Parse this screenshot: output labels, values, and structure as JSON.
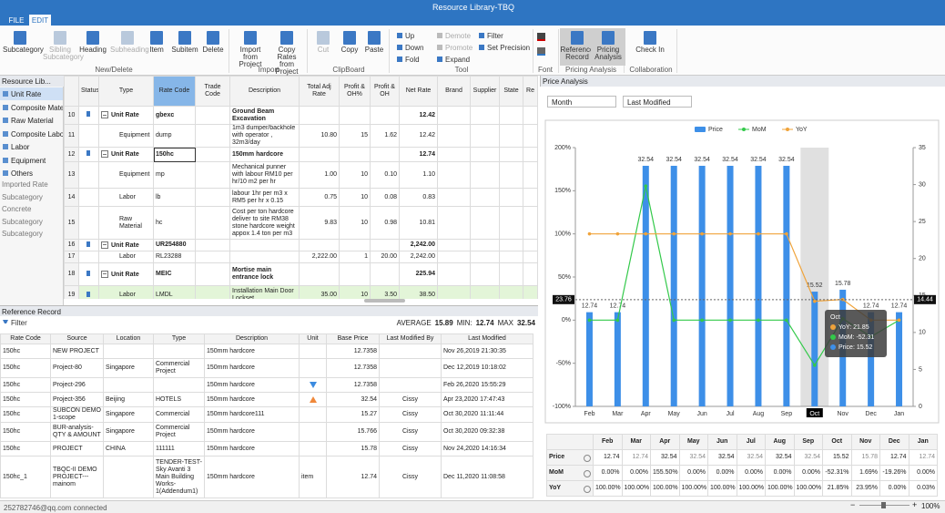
{
  "window": {
    "title": "Resource Library-TBQ",
    "tabs": [
      "FILE",
      "EDIT"
    ]
  },
  "ribbon": {
    "groups": [
      {
        "name": "New/Delete",
        "buttons": [
          {
            "label": "Subcategory"
          },
          {
            "label": "Sibling Subcategory",
            "disabled": true
          },
          {
            "label": "Heading"
          },
          {
            "label": "Subheading",
            "disabled": true
          },
          {
            "label": "Item"
          },
          {
            "label": "Subitem"
          },
          {
            "label": "Delete"
          }
        ]
      },
      {
        "name": "Import",
        "buttons": [
          {
            "label": "Import from Project"
          },
          {
            "label": "Copy Rates from Project"
          }
        ]
      },
      {
        "name": "ClipBoard",
        "buttons": [
          {
            "label": "Cut",
            "disabled": true
          },
          {
            "label": "Copy"
          },
          {
            "label": "Paste"
          }
        ]
      },
      {
        "name": "Tool",
        "buttons": [
          {
            "label": "Up"
          },
          {
            "label": "Down"
          },
          {
            "label": "Fold"
          },
          {
            "label": "Demote",
            "disabled": true
          },
          {
            "label": "Promote",
            "disabled": true
          },
          {
            "label": "Expand"
          },
          {
            "label": "Filter"
          },
          {
            "label": "Set Precision"
          }
        ]
      },
      {
        "name": "Font",
        "buttons": []
      },
      {
        "name": "Pricing Analysis",
        "buttons": [
          {
            "label": "Reference Record",
            "active": true
          },
          {
            "label": "Pricing Analysis",
            "active": true
          }
        ]
      },
      {
        "name": "Collaboration",
        "buttons": [
          {
            "label": "Check In"
          }
        ]
      }
    ]
  },
  "sidebar": {
    "header": "Resource Lib...",
    "categories": [
      "Unit Rate",
      "Composite Material",
      "Raw Material",
      "Composite Labor",
      "Labor",
      "Equipment",
      "Others"
    ],
    "selected": 0,
    "subcategories": [
      "Imported Rate",
      "Subcategory",
      "Concrete",
      "Subcategory",
      "Subcategory"
    ]
  },
  "grid": {
    "columns": [
      "Status",
      "Type",
      "Rate Code",
      "Trade Code",
      "Description",
      "Total Adj Rate",
      "Profit & OH%",
      "Profit & OH",
      "Net Rate",
      "Brand",
      "Supplier",
      "State",
      "Re"
    ],
    "rows": [
      {
        "n": "10",
        "unit": true,
        "cells": [
          null,
          "Unit Rate",
          "gbexc",
          null,
          "Ground Beam Excavation",
          null,
          null,
          null,
          "12.42",
          null,
          null,
          null,
          null
        ]
      },
      {
        "n": "11",
        "cells": [
          null,
          "Equipment",
          "dump",
          null,
          "1m3 dumper/backhole with operator , 32m3/day",
          "10.80",
          "15",
          "1.62",
          "12.42",
          null,
          null,
          null,
          null
        ]
      },
      {
        "n": "12",
        "unit": true,
        "selected": true,
        "cells": [
          null,
          "Unit Rate",
          "150hc",
          null,
          "150mm hardcore",
          null,
          null,
          null,
          "12.74",
          null,
          null,
          null,
          null
        ]
      },
      {
        "n": "13",
        "cells": [
          null,
          "Equipment",
          "mp",
          null,
          "Mechanical punner with labour RM10 per hr/10 m2 per hr",
          "1.00",
          "10",
          "0.10",
          "1.10",
          null,
          null,
          null,
          null
        ]
      },
      {
        "n": "14",
        "cells": [
          null,
          "Labor",
          "lb",
          null,
          "labour 1hr per m3 x RM5 per hr x 0.15",
          "0.75",
          "10",
          "0.08",
          "0.83",
          null,
          null,
          null,
          null
        ]
      },
      {
        "n": "15",
        "cells": [
          null,
          "Raw Material",
          "hc",
          null,
          "Cost per ton hardcore deliver to site RM38 stone hardcore weight appox 1.4 ton per m3",
          "9.83",
          "10",
          "0.98",
          "10.81",
          null,
          null,
          null,
          null
        ]
      },
      {
        "n": "16",
        "unit": true,
        "cells": [
          null,
          "Unit Rate",
          "UR254880",
          null,
          null,
          null,
          null,
          null,
          "2,242.00",
          null,
          null,
          null,
          null
        ]
      },
      {
        "n": "17",
        "cells": [
          null,
          "Labor",
          "RL23288",
          null,
          null,
          "2,222.00",
          "1",
          "20.00",
          "2,242.00",
          null,
          null,
          null,
          null
        ]
      },
      {
        "n": "18",
        "unit": true,
        "cells": [
          null,
          "Unit Rate",
          "MEIC",
          null,
          "Mortise main entrance lock",
          null,
          null,
          null,
          "225.94",
          null,
          null,
          null,
          null
        ]
      },
      {
        "n": "19",
        "highlighted": true,
        "cells": [
          null,
          "Labor",
          "LMDL",
          null,
          "Installation Main Door Lockset",
          "35.00",
          "10",
          "3.50",
          "38.50",
          null,
          null,
          null,
          null
        ]
      }
    ]
  },
  "reference": {
    "title": "Reference Record",
    "filter": "Filter",
    "summary": {
      "average_label": "AVERAGE",
      "average": "15.89",
      "min_label": "MIN:",
      "min": "12.74",
      "max_label": "MAX",
      "max": "32.54"
    },
    "columns": [
      "Rate Code",
      "Source",
      "Location",
      "Type",
      "Description",
      "Unit",
      "Base Price",
      "Last Modified By",
      "Last Modified"
    ],
    "rows": [
      [
        "150hc",
        "NEW PROJECT",
        null,
        null,
        "150mm hardcore",
        null,
        "12.7358",
        null,
        "Nov 26,2019 21:30:35"
      ],
      [
        "150hc",
        "Project-80",
        "Singapore",
        "Commercial Project",
        "150mm hardcore",
        null,
        "12.7358",
        null,
        "Dec 12,2019 10:18:02"
      ],
      [
        "150hc",
        "Project-296",
        null,
        null,
        "150mm hardcore",
        null,
        "12.7358",
        null,
        "Feb 26,2020 15:55:29"
      ],
      [
        "150hc",
        "Project-356",
        "Beijing",
        "HOTELS",
        "150mm hardcore",
        null,
        "32.54",
        "Cissy",
        "Apr 23,2020 17:47:43"
      ],
      [
        "150hc",
        "SUBCON DEMO 1-scope",
        "Singapore",
        "Commercial",
        "150mm hardcore111",
        null,
        "15.27",
        "Cissy",
        "Oct 30,2020 11:11:44"
      ],
      [
        "150hc",
        "BUR-analysis-QTY & AMOUNT",
        "Singapore",
        "Commercial Project",
        "150mm hardcore",
        null,
        "15.766",
        "Cissy",
        "Oct 30,2020 09:32:38"
      ],
      [
        "150hc",
        "PROJECT",
        "CHINA",
        "111111",
        "150mm hardcore",
        null,
        "15.78",
        "Cissy",
        "Nov 24,2020 14:16:34"
      ],
      [
        "150hc_1",
        "TBQC-II DEMO PROJECT---mainom",
        null,
        "TENDER-TEST-Sky Avanti 3 Main Building Works-1(Addendum1)",
        "150mm hardcore",
        "item",
        "12.74",
        "Cissy",
        "Dec 11,2020 11:08:58"
      ]
    ],
    "trend": [
      null,
      null,
      "down",
      "up",
      null,
      null,
      null,
      null
    ]
  },
  "price_panel": {
    "title": "Price Analysis",
    "period": "Month",
    "sort": "Last Modified",
    "row_labels": [
      "Price",
      "MoM",
      "YoY"
    ]
  },
  "zoom": {
    "minus": "−",
    "plus": "+",
    "level": "100%"
  },
  "status": "252782746@qq.com connected",
  "chart_data": {
    "type": "combo",
    "categories": [
      "Feb",
      "Mar",
      "Apr",
      "May",
      "Jun",
      "Jul",
      "Aug",
      "Sep",
      "Oct",
      "Nov",
      "Dec",
      "Jan"
    ],
    "series": [
      {
        "name": "Price",
        "kind": "bar",
        "axis": "y2",
        "color": "#3d8fe8",
        "values": [
          12.74,
          12.74,
          32.54,
          32.54,
          32.54,
          32.54,
          32.54,
          32.54,
          15.52,
          15.78,
          12.74,
          12.74
        ]
      },
      {
        "name": "MoM",
        "kind": "line",
        "color": "#33c94a",
        "values": [
          0,
          0,
          155.5,
          0,
          0,
          0,
          0,
          0,
          -52.31,
          1.69,
          -19.26,
          0
        ],
        "value_labels": [
          "0.00%",
          "0.00%",
          "155.50%",
          "0.00%",
          "0.00%",
          "0.00%",
          "0.00%",
          "0.00%",
          "-52.31%",
          "1.69%",
          "-19.26%",
          "0.00%"
        ]
      },
      {
        "name": "YoY",
        "kind": "line",
        "color": "#f0a33a",
        "values": [
          100,
          100,
          100,
          100,
          100,
          100,
          100,
          100,
          21.85,
          23.95,
          0,
          0.03
        ],
        "value_labels": [
          "100.00%",
          "100.00%",
          "100.00%",
          "100.00%",
          "100.00%",
          "100.00%",
          "100.00%",
          "100.00%",
          "21.85%",
          "23.95%",
          "0.00%",
          "0.03%"
        ]
      }
    ],
    "ylim": [
      -100,
      200
    ],
    "yticks": [
      {
        "value": -100,
        "label": "-100%"
      },
      {
        "value": -50,
        "label": "-50%"
      },
      {
        "value": 0,
        "label": "0%"
      },
      {
        "value": 50,
        "label": "50%"
      },
      {
        "value": 100,
        "label": "100%"
      },
      {
        "value": 150,
        "label": "150%"
      },
      {
        "value": 200,
        "label": "200%"
      }
    ],
    "y2lim": [
      0,
      35
    ],
    "y2ticks": [
      0,
      5,
      10,
      15,
      20,
      25,
      30,
      35
    ],
    "legend": "top",
    "grid": false,
    "highlight": "Oct",
    "crosshair": {
      "y": 23.76,
      "y2": 14.44
    },
    "tooltip": {
      "title": "Oct",
      "items": [
        "YoY: 21.85",
        "MoM: -52.31",
        "Price: 15.52"
      ]
    }
  }
}
